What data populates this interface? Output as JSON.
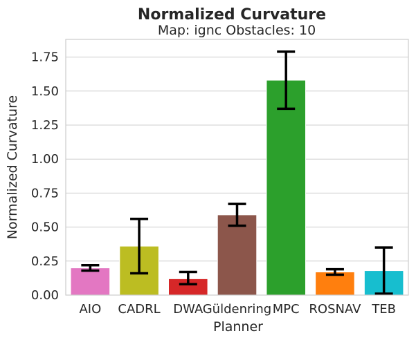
{
  "chart_data": {
    "type": "bar",
    "title": "Normalized Curvature",
    "subtitle": "Map: ignc Obstacles: 10",
    "xlabel": "Planner",
    "ylabel": "Normalized Curvature",
    "ylim": [
      0,
      1.88
    ],
    "yticks": [
      "0.00",
      "0.25",
      "0.50",
      "0.75",
      "1.00",
      "1.25",
      "1.50",
      "1.75"
    ],
    "grid": true,
    "categories": [
      "AIO",
      "CADRL",
      "DWA",
      "Güldenring",
      "MPC",
      "ROSNAV",
      "TEB"
    ],
    "values": [
      0.2,
      0.36,
      0.12,
      0.59,
      1.58,
      0.17,
      0.18
    ],
    "error_low": [
      0.18,
      0.16,
      0.08,
      0.51,
      1.37,
      0.15,
      0.01
    ],
    "error_high": [
      0.22,
      0.56,
      0.17,
      0.67,
      1.79,
      0.19,
      0.35
    ],
    "colors": [
      "#e377c2",
      "#bcbd22",
      "#d62728",
      "#8c564b",
      "#2ca02c",
      "#ff7f0e",
      "#17becf"
    ]
  }
}
